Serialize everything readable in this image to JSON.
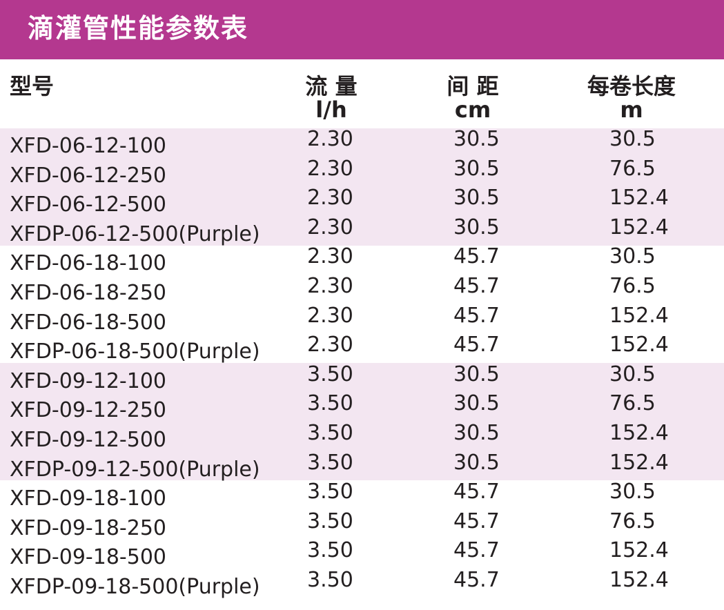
{
  "title": "滴灌管性能参数表",
  "header": {
    "model": "型号",
    "flow": "流 量",
    "flow_unit": "l/h",
    "spacing": "间 距",
    "spacing_unit": "cm",
    "length": "每卷长度",
    "length_unit": "m"
  },
  "colors": {
    "title_bg": "#b4388f",
    "band_bg": "#f3e6f1"
  },
  "rows": [
    {
      "model": "XFD-06-12-100",
      "flow": "2.30",
      "spacing": "30.5",
      "length": "30.5"
    },
    {
      "model": "XFD-06-12-250",
      "flow": "2.30",
      "spacing": "30.5",
      "length": "76.5"
    },
    {
      "model": "XFD-06-12-500",
      "flow": "2.30",
      "spacing": "30.5",
      "length": "152.4"
    },
    {
      "model": "XFDP-06-12-500(Purple)",
      "flow": "2.30",
      "spacing": "30.5",
      "length": "152.4"
    },
    {
      "model": "XFD-06-18-100",
      "flow": "2.30",
      "spacing": "45.7",
      "length": "30.5"
    },
    {
      "model": "XFD-06-18-250",
      "flow": "2.30",
      "spacing": "45.7",
      "length": "76.5"
    },
    {
      "model": "XFD-06-18-500",
      "flow": "2.30",
      "spacing": "45.7",
      "length": "152.4"
    },
    {
      "model": "XFDP-06-18-500(Purple)",
      "flow": "2.30",
      "spacing": "45.7",
      "length": "152.4"
    },
    {
      "model": "XFD-09-12-100",
      "flow": "3.50",
      "spacing": "30.5",
      "length": "30.5"
    },
    {
      "model": "XFD-09-12-250",
      "flow": "3.50",
      "spacing": "30.5",
      "length": "76.5"
    },
    {
      "model": "XFD-09-12-500",
      "flow": "3.50",
      "spacing": "30.5",
      "length": "152.4"
    },
    {
      "model": "XFDP-09-12-500(Purple)",
      "flow": "3.50",
      "spacing": "30.5",
      "length": "152.4"
    },
    {
      "model": "XFD-09-18-100",
      "flow": "3.50",
      "spacing": "45.7",
      "length": "30.5"
    },
    {
      "model": "XFD-09-18-250",
      "flow": "3.50",
      "spacing": "45.7",
      "length": "76.5"
    },
    {
      "model": "XFD-09-18-500",
      "flow": "3.50",
      "spacing": "45.7",
      "length": "152.4"
    },
    {
      "model": "XFDP-09-18-500(Purple)",
      "flow": "3.50",
      "spacing": "45.7",
      "length": "152.4"
    }
  ]
}
